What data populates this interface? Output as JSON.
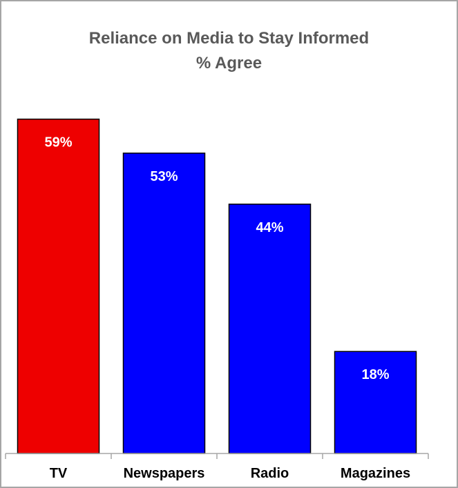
{
  "chart_data": {
    "type": "bar",
    "title": "Reliance on Media to Stay Informed",
    "subtitle": "% Agree",
    "categories": [
      "TV",
      "Newspapers",
      "Radio",
      "Magazines"
    ],
    "values": [
      59,
      53,
      44,
      18
    ],
    "data_labels": [
      "59%",
      "53%",
      "44%",
      "18%"
    ],
    "xlabel": "",
    "ylabel": "",
    "ylim": [
      0,
      64
    ],
    "grid": false,
    "legend": "none",
    "colors": [
      "#ee0000",
      "#0000ff",
      "#0000ff",
      "#0000ff"
    ],
    "label_color": "#ffffff",
    "axis_color": "#a6a6a6",
    "title_color": "#595959"
  }
}
